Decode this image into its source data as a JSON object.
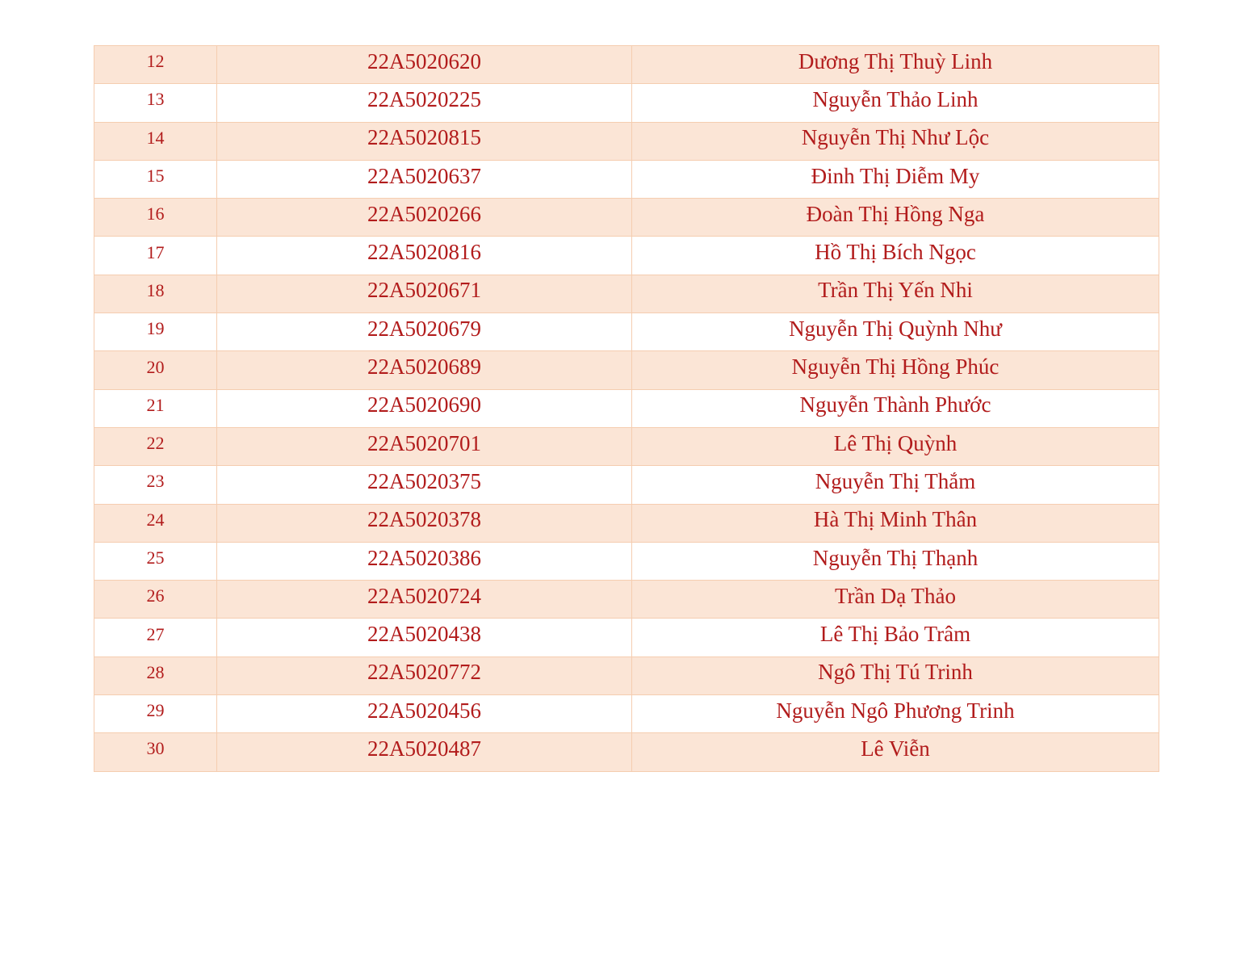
{
  "colors": {
    "text": "#b21c1c",
    "row_fill": "#fbe5d6",
    "border": "#f5cdb0"
  },
  "rows": [
    {
      "stt": "12",
      "code": "22A5020620",
      "name": "Dương Thị Thuỳ Linh"
    },
    {
      "stt": "13",
      "code": "22A5020225",
      "name": "Nguyễn Thảo Linh"
    },
    {
      "stt": "14",
      "code": "22A5020815",
      "name": "Nguyễn Thị Như Lộc"
    },
    {
      "stt": "15",
      "code": "22A5020637",
      "name": "Đinh Thị Diễm My"
    },
    {
      "stt": "16",
      "code": "22A5020266",
      "name": "Đoàn Thị Hồng Nga"
    },
    {
      "stt": "17",
      "code": "22A5020816",
      "name": "Hồ Thị Bích Ngọc"
    },
    {
      "stt": "18",
      "code": "22A5020671",
      "name": "Trần Thị Yến Nhi"
    },
    {
      "stt": "19",
      "code": "22A5020679",
      "name": "Nguyễn Thị Quỳnh Như"
    },
    {
      "stt": "20",
      "code": "22A5020689",
      "name": "Nguyễn Thị Hồng Phúc"
    },
    {
      "stt": "21",
      "code": "22A5020690",
      "name": "Nguyễn Thành Phước"
    },
    {
      "stt": "22",
      "code": "22A5020701",
      "name": "Lê Thị Quỳnh"
    },
    {
      "stt": "23",
      "code": "22A5020375",
      "name": "Nguyễn Thị Thắm"
    },
    {
      "stt": "24",
      "code": "22A5020378",
      "name": "Hà Thị Minh Thân"
    },
    {
      "stt": "25",
      "code": "22A5020386",
      "name": "Nguyễn Thị Thạnh"
    },
    {
      "stt": "26",
      "code": "22A5020724",
      "name": "Trần Dạ Thảo"
    },
    {
      "stt": "27",
      "code": "22A5020438",
      "name": "Lê Thị Bảo Trâm"
    },
    {
      "stt": "28",
      "code": "22A5020772",
      "name": "Ngô Thị Tú Trinh"
    },
    {
      "stt": "29",
      "code": "22A5020456",
      "name": "Nguyễn Ngô Phương Trinh"
    },
    {
      "stt": "30",
      "code": "22A5020487",
      "name": "Lê Viễn"
    }
  ]
}
